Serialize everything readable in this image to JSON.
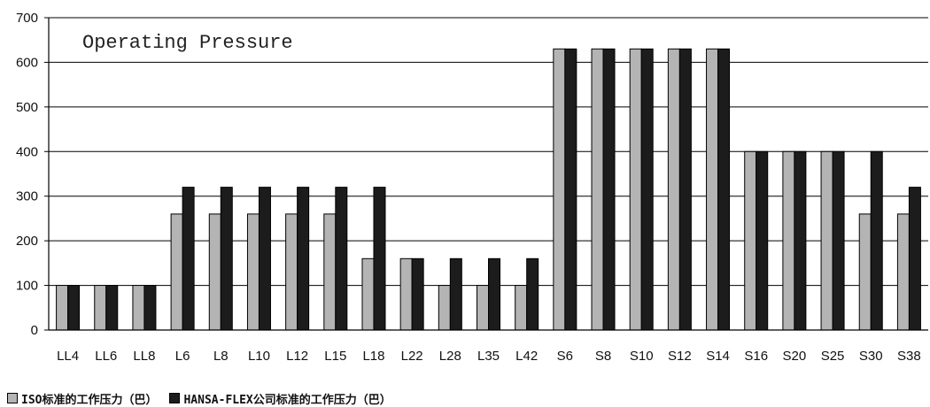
{
  "chart_data": {
    "type": "bar",
    "title": "Operating Pressure",
    "xlabel": "",
    "ylabel": "",
    "ylim": [
      0,
      700
    ],
    "yticks": [
      0,
      100,
      200,
      300,
      400,
      500,
      600,
      700
    ],
    "grid": "horizontal",
    "legend_position": "bottom-left",
    "categories": [
      "LL4",
      "LL6",
      "LL8",
      "L6",
      "L8",
      "L10",
      "L12",
      "L15",
      "L18",
      "L22",
      "L28",
      "L35",
      "L42",
      "S6",
      "S8",
      "S10",
      "S12",
      "S14",
      "S16",
      "S20",
      "S25",
      "S30",
      "S38"
    ],
    "series": [
      {
        "name": "ISO标准的工作压力（巴）",
        "color": "#b4b4b4",
        "values": [
          100,
          100,
          100,
          260,
          260,
          260,
          260,
          260,
          160,
          160,
          100,
          100,
          100,
          630,
          630,
          630,
          630,
          630,
          400,
          400,
          400,
          260,
          260
        ]
      },
      {
        "name": "HANSA-FLEX公司标准的工作压力（巴）",
        "color": "#1c1c1c",
        "values": [
          100,
          100,
          100,
          320,
          320,
          320,
          320,
          320,
          320,
          160,
          160,
          160,
          160,
          630,
          630,
          630,
          630,
          630,
          400,
          400,
          400,
          400,
          320
        ]
      }
    ]
  }
}
